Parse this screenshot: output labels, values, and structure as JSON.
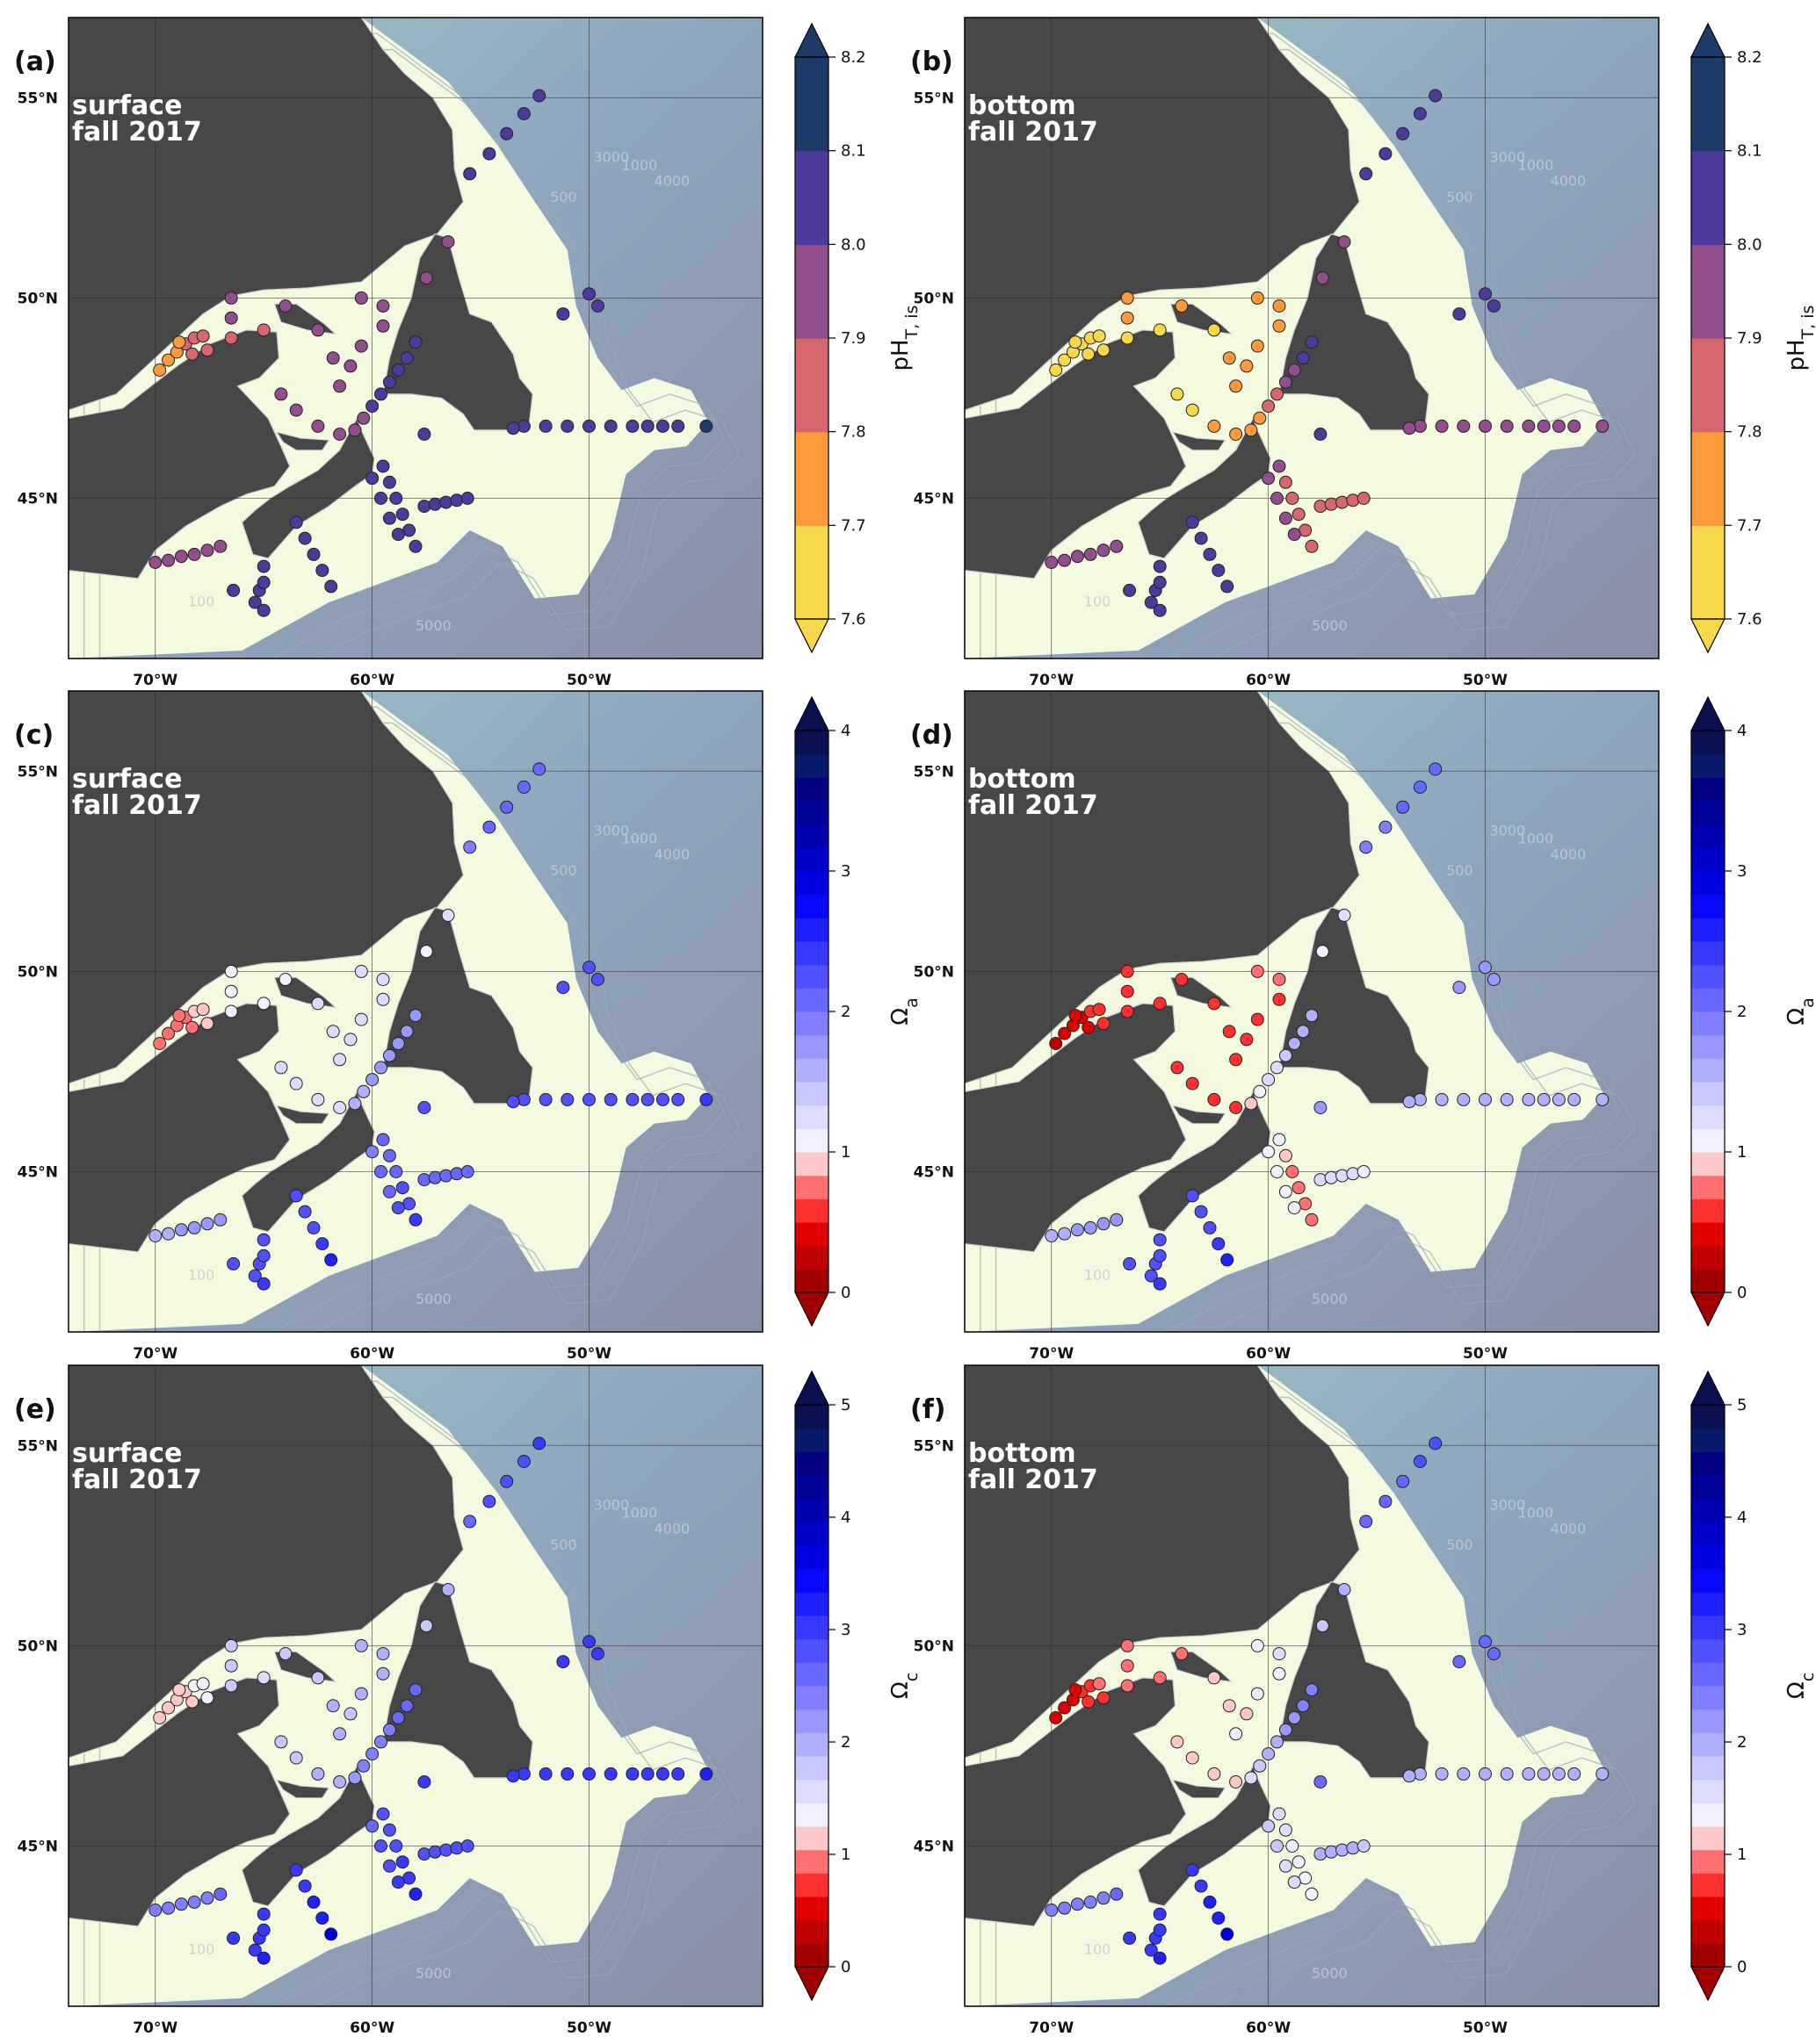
{
  "panels": [
    {
      "id": "a",
      "label": "(a)",
      "depth": "surface",
      "season": "fall 2017",
      "variable": "pH",
      "col": 0,
      "row": 0
    },
    {
      "id": "b",
      "label": "(b)",
      "depth": "bottom",
      "season": "fall 2017",
      "variable": "pH",
      "col": 1,
      "row": 0
    },
    {
      "id": "c",
      "label": "(c)",
      "depth": "surface",
      "season": "fall 2017",
      "variable": "omega_a",
      "col": 0,
      "row": 1
    },
    {
      "id": "d",
      "label": "(d)",
      "depth": "bottom",
      "season": "fall 2017",
      "variable": "omega_a",
      "col": 1,
      "row": 1
    },
    {
      "id": "e",
      "label": "(e)",
      "depth": "surface",
      "season": "fall 2017",
      "variable": "omega_c",
      "col": 0,
      "row": 2
    },
    {
      "id": "f",
      "label": "(f)",
      "depth": "bottom",
      "season": "fall 2017",
      "variable": "omega_c",
      "col": 1,
      "row": 2
    }
  ],
  "map": {
    "lon_range": [
      -74,
      -42
    ],
    "lat_range": [
      41,
      57
    ],
    "lon_ticks": [
      {
        "value": -70,
        "label": "70°W"
      },
      {
        "value": -60,
        "label": "60°W"
      },
      {
        "value": -50,
        "label": "50°W"
      }
    ],
    "lat_ticks": [
      {
        "value": 55,
        "label": "55°N"
      },
      {
        "value": 50,
        "label": "50°N"
      },
      {
        "value": 45,
        "label": "45°N"
      }
    ],
    "contour_labels": [
      "500",
      "1000",
      "3000",
      "4000",
      "5000",
      "100"
    ],
    "land_color": "#474747",
    "shelf_color": "#f4fae0"
  },
  "colorbars": {
    "pH": {
      "title_main": "pH",
      "title_sub": "T, is",
      "min": 7.6,
      "max": 8.2,
      "ticks": [
        "7.6",
        "7.7",
        "7.8",
        "7.9",
        "8.0",
        "8.1",
        "8.2"
      ],
      "colors": [
        "#f6d84a",
        "#fa9a3c",
        "#d7676e",
        "#914d8c",
        "#4d3a9a",
        "#1e3a68"
      ]
    },
    "omega_a": {
      "title_main": "Ω",
      "title_sub": "a",
      "min": 0,
      "max": 4,
      "ticks": [
        "0",
        "1",
        "2",
        "3",
        "4"
      ],
      "colors": [
        "#a00000",
        "#c00000",
        "#e00000",
        "#ff3030",
        "#ff7070",
        "#ffc8c8",
        "#f0f0ff",
        "#dcdcff",
        "#c8c8ff",
        "#b0b0ff",
        "#9898ff",
        "#8080ff",
        "#6868ff",
        "#5050ff",
        "#3838ff",
        "#2020ff",
        "#0808ff",
        "#0000e0",
        "#0000c8",
        "#0000b0",
        "#000098",
        "#000080",
        "#0a1a6a",
        "#0a1050"
      ]
    },
    "omega_c": {
      "title_main": "Ω",
      "title_sub": "c",
      "min": 0,
      "max": 5,
      "ticks": [
        "0",
        "1",
        "2",
        "3",
        "4",
        "5"
      ],
      "colors": [
        "#a00000",
        "#c00000",
        "#e00000",
        "#ff3030",
        "#ff7070",
        "#ffc8c8",
        "#f0f0ff",
        "#dcdcff",
        "#c8c8ff",
        "#b0b0ff",
        "#9898ff",
        "#8080ff",
        "#6868ff",
        "#5050ff",
        "#3838ff",
        "#2020ff",
        "#0808ff",
        "#0000e0",
        "#0000c8",
        "#0000b0",
        "#000098",
        "#000080",
        "#0a1a6a",
        "#0a1050"
      ]
    }
  },
  "stations": [
    {
      "lon": -69.8,
      "lat": 48.2,
      "v": [
        7.75,
        7.62,
        0.7,
        0.3,
        1.1,
        0.5
      ]
    },
    {
      "lon": -69.4,
      "lat": 48.45,
      "v": [
        7.76,
        7.63,
        0.7,
        0.35,
        1.1,
        0.55
      ]
    },
    {
      "lon": -69.0,
      "lat": 48.65,
      "v": [
        7.78,
        7.64,
        0.75,
        0.4,
        1.15,
        0.6
      ]
    },
    {
      "lon": -68.6,
      "lat": 48.85,
      "v": [
        7.8,
        7.65,
        0.8,
        0.45,
        1.2,
        0.7
      ]
    },
    {
      "lon": -68.2,
      "lat": 49.0,
      "v": [
        7.82,
        7.66,
        0.85,
        0.5,
        1.25,
        0.8
      ]
    },
    {
      "lon": -67.8,
      "lat": 49.05,
      "v": [
        7.85,
        7.67,
        0.9,
        0.55,
        1.3,
        0.9
      ]
    },
    {
      "lon": -68.9,
      "lat": 48.9,
      "v": [
        7.79,
        7.64,
        0.75,
        0.4,
        1.15,
        0.6
      ]
    },
    {
      "lon": -68.3,
      "lat": 48.6,
      "v": [
        7.81,
        7.66,
        0.8,
        0.45,
        1.2,
        0.7
      ]
    },
    {
      "lon": -67.6,
      "lat": 48.7,
      "v": [
        7.84,
        7.67,
        0.85,
        0.5,
        1.25,
        0.8
      ]
    },
    {
      "lon": -66.5,
      "lat": 50.0,
      "v": [
        7.9,
        7.7,
        1.1,
        0.5,
        1.8,
        0.9
      ]
    },
    {
      "lon": -66.5,
      "lat": 49.5,
      "v": [
        7.9,
        7.7,
        1.1,
        0.5,
        1.8,
        0.9
      ]
    },
    {
      "lon": -66.5,
      "lat": 49.0,
      "v": [
        7.88,
        7.69,
        1.0,
        0.55,
        1.7,
        0.95
      ]
    },
    {
      "lon": -65.0,
      "lat": 49.2,
      "v": [
        7.88,
        7.69,
        1.0,
        0.55,
        1.6,
        0.95
      ]
    },
    {
      "lon": -64.0,
      "lat": 49.8,
      "v": [
        7.92,
        7.7,
        1.1,
        0.6,
        1.7,
        1.0
      ]
    },
    {
      "lon": -62.5,
      "lat": 49.2,
      "v": [
        7.92,
        7.68,
        1.2,
        0.5,
        1.8,
        1.1
      ]
    },
    {
      "lon": -61.8,
      "lat": 48.5,
      "v": [
        7.94,
        7.7,
        1.2,
        0.6,
        1.9,
        1.2
      ]
    },
    {
      "lon": -61.5,
      "lat": 47.8,
      "v": [
        7.95,
        7.72,
        1.3,
        0.6,
        1.9,
        1.3
      ]
    },
    {
      "lon": -60.5,
      "lat": 50.0,
      "v": [
        7.93,
        7.72,
        1.2,
        0.7,
        1.9,
        1.4
      ]
    },
    {
      "lon": -59.5,
      "lat": 49.8,
      "v": [
        7.94,
        7.72,
        1.2,
        0.7,
        1.9,
        1.5
      ]
    },
    {
      "lon": -59.5,
      "lat": 49.3,
      "v": [
        7.95,
        7.7,
        1.2,
        0.6,
        1.9,
        1.3
      ]
    },
    {
      "lon": -60.5,
      "lat": 48.8,
      "v": [
        7.94,
        7.71,
        1.2,
        0.6,
        1.9,
        1.3
      ]
    },
    {
      "lon": -61.0,
      "lat": 48.3,
      "v": [
        7.93,
        7.7,
        1.2,
        0.6,
        1.8,
        1.2
      ]
    },
    {
      "lon": -63.5,
      "lat": 47.2,
      "v": [
        7.95,
        7.68,
        1.2,
        0.5,
        1.8,
        1.1
      ]
    },
    {
      "lon": -62.5,
      "lat": 46.8,
      "v": [
        7.96,
        7.7,
        1.3,
        0.55,
        1.9,
        1.2
      ]
    },
    {
      "lon": -61.5,
      "lat": 46.6,
      "v": [
        7.97,
        7.72,
        1.3,
        0.6,
        1.9,
        1.2
      ]
    },
    {
      "lon": -64.2,
      "lat": 47.6,
      "v": [
        7.95,
        7.68,
        1.2,
        0.5,
        1.8,
        1.1
      ]
    },
    {
      "lon": -60.8,
      "lat": 46.7,
      "v": [
        7.98,
        7.75,
        1.5,
        0.9,
        2.2,
        1.5
      ]
    },
    {
      "lon": -60.4,
      "lat": 47.0,
      "v": [
        7.99,
        7.78,
        1.6,
        1.1,
        2.3,
        1.7
      ]
    },
    {
      "lon": -60.0,
      "lat": 47.3,
      "v": [
        8.0,
        7.8,
        1.7,
        1.2,
        2.4,
        1.9
      ]
    },
    {
      "lon": -59.6,
      "lat": 47.6,
      "v": [
        8.0,
        7.85,
        1.7,
        1.3,
        2.4,
        2.0
      ]
    },
    {
      "lon": -59.2,
      "lat": 47.9,
      "v": [
        8.01,
        7.9,
        1.7,
        1.4,
        2.4,
        2.1
      ]
    },
    {
      "lon": -58.8,
      "lat": 48.2,
      "v": [
        8.02,
        7.95,
        1.8,
        1.5,
        2.5,
        2.2
      ]
    },
    {
      "lon": -58.4,
      "lat": 48.5,
      "v": [
        8.03,
        8.0,
        1.8,
        1.6,
        2.5,
        2.3
      ]
    },
    {
      "lon": -58.0,
      "lat": 48.9,
      "v": [
        8.03,
        8.02,
        1.8,
        1.6,
        2.6,
        2.4
      ]
    },
    {
      "lon": -57.6,
      "lat": 46.6,
      "v": [
        8.06,
        8.05,
        2.2,
        1.8,
        3.0,
        2.6
      ]
    },
    {
      "lon": -59.5,
      "lat": 45.8,
      "v": [
        8.05,
        7.9,
        2.0,
        1.0,
        2.8,
        1.6
      ]
    },
    {
      "lon": -59.2,
      "lat": 45.4,
      "v": [
        8.06,
        7.88,
        2.1,
        0.9,
        2.9,
        1.5
      ]
    },
    {
      "lon": -58.9,
      "lat": 45.0,
      "v": [
        8.06,
        7.86,
        2.1,
        0.8,
        2.9,
        1.4
      ]
    },
    {
      "lon": -58.6,
      "lat": 44.6,
      "v": [
        8.07,
        7.85,
        2.2,
        0.8,
        3.0,
        1.4
      ]
    },
    {
      "lon": -58.3,
      "lat": 44.2,
      "v": [
        8.07,
        7.85,
        2.2,
        0.8,
        3.0,
        1.4
      ]
    },
    {
      "lon": -58.0,
      "lat": 43.8,
      "v": [
        8.08,
        7.85,
        2.4,
        0.7,
        3.2,
        1.3
      ]
    },
    {
      "lon": -60.0,
      "lat": 45.5,
      "v": [
        8.04,
        7.9,
        1.9,
        1.1,
        2.7,
        1.7
      ]
    },
    {
      "lon": -59.6,
      "lat": 45.0,
      "v": [
        8.05,
        7.9,
        2.0,
        1.1,
        2.8,
        1.7
      ]
    },
    {
      "lon": -59.2,
      "lat": 44.5,
      "v": [
        8.06,
        7.9,
        2.1,
        1.0,
        2.9,
        1.6
      ]
    },
    {
      "lon": -58.8,
      "lat": 44.1,
      "v": [
        8.07,
        7.92,
        2.2,
        1.0,
        3.0,
        1.6
      ]
    },
    {
      "lon": -57.6,
      "lat": 44.8,
      "v": [
        8.05,
        7.88,
        2.0,
        1.2,
        2.8,
        1.9
      ]
    },
    {
      "lon": -57.1,
      "lat": 44.85,
      "v": [
        8.05,
        7.88,
        2.0,
        1.2,
        2.8,
        1.9
      ]
    },
    {
      "lon": -56.6,
      "lat": 44.9,
      "v": [
        8.06,
        7.87,
        2.0,
        1.2,
        2.9,
        1.9
      ]
    },
    {
      "lon": -56.1,
      "lat": 44.95,
      "v": [
        8.06,
        7.86,
        2.1,
        1.2,
        2.9,
        1.9
      ]
    },
    {
      "lon": -55.6,
      "lat": 45.0,
      "v": [
        8.06,
        7.85,
        2.1,
        1.1,
        2.9,
        1.8
      ]
    },
    {
      "lon": -53.0,
      "lat": 46.8,
      "v": [
        8.08,
        7.95,
        2.2,
        1.5,
        3.0,
        2.0
      ]
    },
    {
      "lon": -52.0,
      "lat": 46.8,
      "v": [
        8.08,
        7.95,
        2.2,
        1.5,
        3.0,
        2.0
      ]
    },
    {
      "lon": -51.0,
      "lat": 46.8,
      "v": [
        8.08,
        7.96,
        2.2,
        1.5,
        3.0,
        2.0
      ]
    },
    {
      "lon": -50.0,
      "lat": 46.8,
      "v": [
        8.08,
        7.96,
        2.2,
        1.5,
        3.0,
        2.0
      ]
    },
    {
      "lon": -49.0,
      "lat": 46.8,
      "v": [
        8.08,
        7.96,
        2.2,
        1.5,
        3.1,
        2.0
      ]
    },
    {
      "lon": -48.0,
      "lat": 46.8,
      "v": [
        8.08,
        7.96,
        2.3,
        1.5,
        3.1,
        2.0
      ]
    },
    {
      "lon": -47.3,
      "lat": 46.8,
      "v": [
        8.08,
        7.97,
        2.3,
        1.5,
        3.1,
        2.0
      ]
    },
    {
      "lon": -46.6,
      "lat": 46.8,
      "v": [
        8.09,
        7.97,
        2.3,
        1.5,
        3.1,
        2.0
      ]
    },
    {
      "lon": -45.9,
      "lat": 46.8,
      "v": [
        8.09,
        7.97,
        2.3,
        1.5,
        3.1,
        2.0
      ]
    },
    {
      "lon": -44.6,
      "lat": 46.8,
      "v": [
        8.12,
        7.98,
        2.4,
        1.5,
        3.3,
        2.0
      ]
    },
    {
      "lon": -53.5,
      "lat": 46.75,
      "v": [
        8.08,
        7.95,
        2.2,
        1.5,
        3.0,
        2.0
      ]
    },
    {
      "lon": -50.0,
      "lat": 50.1,
      "v": [
        8.08,
        8.06,
        2.3,
        1.8,
        3.1,
        2.5
      ]
    },
    {
      "lon": -51.2,
      "lat": 49.6,
      "v": [
        8.08,
        8.06,
        2.3,
        1.8,
        3.1,
        2.5
      ]
    },
    {
      "lon": -49.6,
      "lat": 49.8,
      "v": [
        8.09,
        8.06,
        2.3,
        1.8,
        3.1,
        2.5
      ]
    },
    {
      "lon": -55.5,
      "lat": 53.1,
      "v": [
        8.04,
        8.06,
        1.9,
        1.9,
        2.7,
        2.6
      ]
    },
    {
      "lon": -54.6,
      "lat": 53.6,
      "v": [
        8.05,
        8.07,
        2.0,
        1.9,
        2.8,
        2.7
      ]
    },
    {
      "lon": -53.8,
      "lat": 54.1,
      "v": [
        8.06,
        8.08,
        2.0,
        2.0,
        2.8,
        2.7
      ]
    },
    {
      "lon": -53.0,
      "lat": 54.6,
      "v": [
        8.07,
        8.08,
        2.1,
        2.0,
        2.9,
        2.8
      ]
    },
    {
      "lon": -52.3,
      "lat": 55.05,
      "v": [
        8.08,
        8.09,
        2.1,
        2.0,
        3.0,
        2.8
      ]
    },
    {
      "lon": -56.5,
      "lat": 51.4,
      "v": [
        7.98,
        7.9,
        1.2,
        1.2,
        1.9,
        1.9
      ]
    },
    {
      "lon": -57.5,
      "lat": 50.5,
      "v": [
        7.96,
        7.9,
        1.1,
        1.1,
        1.8,
        1.8
      ]
    },
    {
      "lon": -70.0,
      "lat": 43.4,
      "v": [
        7.98,
        7.96,
        1.6,
        1.6,
        2.3,
        2.3
      ]
    },
    {
      "lon": -69.4,
      "lat": 43.45,
      "v": [
        7.98,
        7.96,
        1.6,
        1.6,
        2.3,
        2.3
      ]
    },
    {
      "lon": -68.8,
      "lat": 43.55,
      "v": [
        7.98,
        7.97,
        1.7,
        1.7,
        2.4,
        2.4
      ]
    },
    {
      "lon": -68.2,
      "lat": 43.6,
      "v": [
        7.99,
        7.97,
        1.7,
        1.7,
        2.4,
        2.4
      ]
    },
    {
      "lon": -67.6,
      "lat": 43.7,
      "v": [
        7.99,
        7.97,
        1.7,
        1.7,
        2.4,
        2.4
      ]
    },
    {
      "lon": -67.0,
      "lat": 43.8,
      "v": [
        7.99,
        7.98,
        1.7,
        1.7,
        2.5,
        2.5
      ]
    },
    {
      "lon": -66.4,
      "lat": 42.7,
      "v": [
        8.05,
        8.08,
        2.2,
        2.2,
        3.0,
        3.0
      ]
    },
    {
      "lon": -65.4,
      "lat": 42.4,
      "v": [
        8.06,
        8.08,
        2.3,
        2.3,
        3.1,
        3.1
      ]
    },
    {
      "lon": -65.2,
      "lat": 42.7,
      "v": [
        8.06,
        8.08,
        2.3,
        2.3,
        3.1,
        3.1
      ]
    },
    {
      "lon": -65.0,
      "lat": 42.2,
      "v": [
        8.07,
        8.09,
        2.4,
        2.4,
        3.3,
        3.3
      ]
    },
    {
      "lon": -65.0,
      "lat": 42.9,
      "v": [
        8.06,
        8.08,
        2.3,
        2.3,
        3.1,
        3.1
      ]
    },
    {
      "lon": -65.0,
      "lat": 43.3,
      "v": [
        8.06,
        8.08,
        2.3,
        2.3,
        3.1,
        3.1
      ]
    },
    {
      "lon": -63.5,
      "lat": 44.4,
      "v": [
        8.05,
        8.06,
        2.2,
        2.2,
        3.0,
        3.0
      ]
    },
    {
      "lon": -63.1,
      "lat": 44.0,
      "v": [
        8.06,
        8.07,
        2.3,
        2.3,
        3.1,
        3.1
      ]
    },
    {
      "lon": -62.7,
      "lat": 43.6,
      "v": [
        8.06,
        8.07,
        2.3,
        2.3,
        3.2,
        3.2
      ]
    },
    {
      "lon": -62.3,
      "lat": 43.2,
      "v": [
        8.07,
        8.08,
        2.4,
        2.4,
        3.3,
        3.3
      ]
    },
    {
      "lon": -61.9,
      "lat": 42.8,
      "v": [
        8.08,
        8.09,
        2.6,
        2.6,
        3.6,
        3.6
      ]
    }
  ]
}
